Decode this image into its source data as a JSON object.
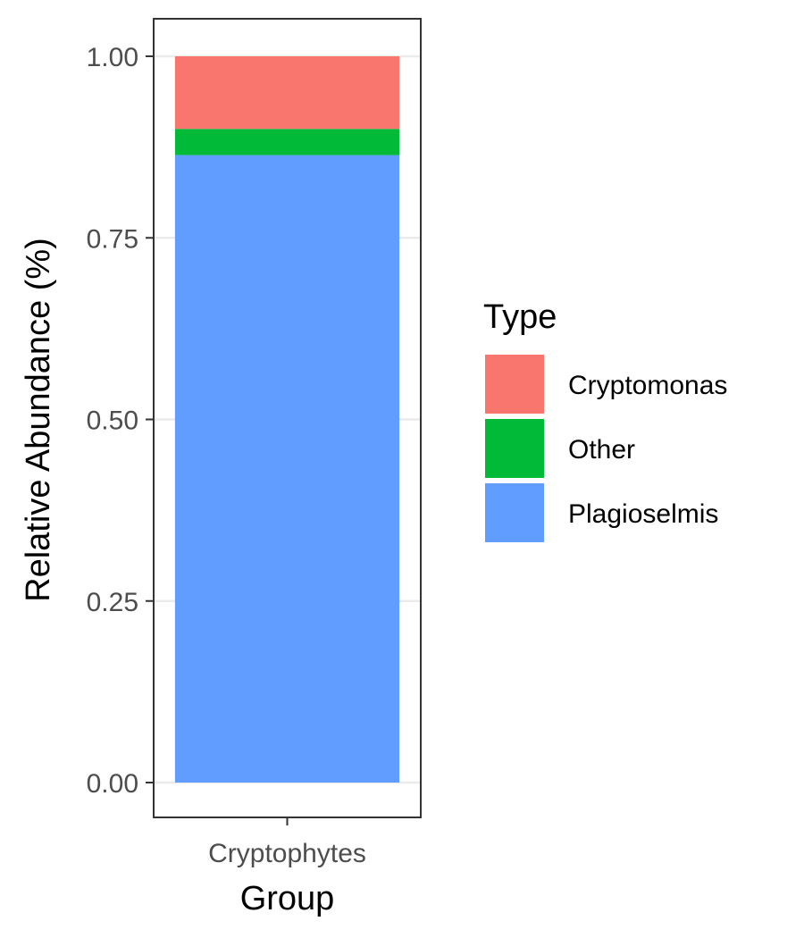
{
  "chart_data": {
    "type": "bar",
    "stacked": true,
    "categories": [
      "Cryptophytes"
    ],
    "series": [
      {
        "name": "Plagioselmis",
        "values": [
          0.864
        ],
        "color": "#619CFF"
      },
      {
        "name": "Other",
        "values": [
          0.036
        ],
        "color": "#00BA38"
      },
      {
        "name": "Cryptomonas",
        "values": [
          0.1
        ],
        "color": "#F8766D"
      }
    ],
    "xlabel": "Group",
    "ylabel": "Relative Abundance (%)",
    "ylim": [
      0,
      1
    ],
    "yticks": [
      "0.00",
      "0.25",
      "0.50",
      "0.75",
      "1.00"
    ],
    "grid": true,
    "legend": {
      "title": "Type",
      "position": "right",
      "entries": [
        {
          "label": "Cryptomonas",
          "color": "#F8766D"
        },
        {
          "label": "Other",
          "color": "#00BA38"
        },
        {
          "label": "Plagioselmis",
          "color": "#619CFF"
        }
      ]
    }
  }
}
